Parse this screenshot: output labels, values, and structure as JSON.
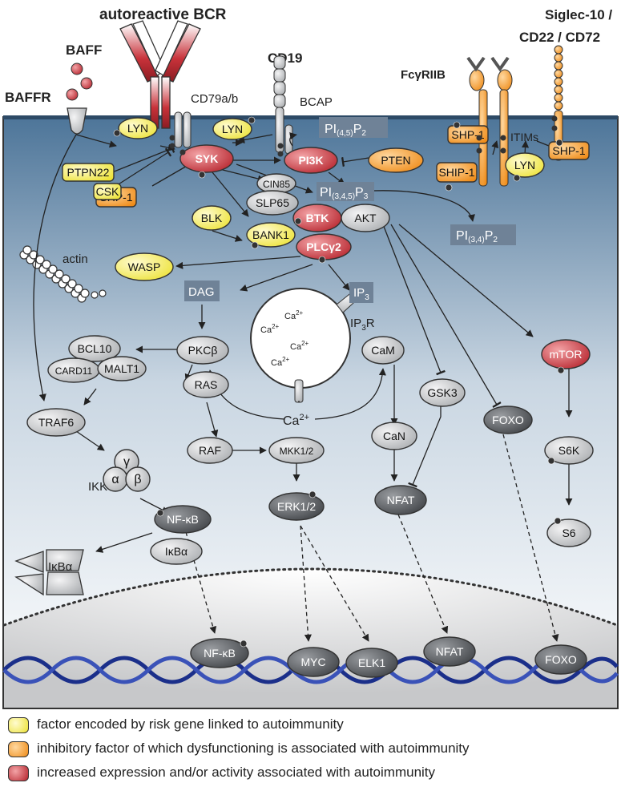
{
  "colors": {
    "yellow": "#f7ef45",
    "orange": "#f5a02a",
    "red": "#c8323a",
    "grey": "#c9cbce",
    "dark": "#5b5e63",
    "box": "#6f8297",
    "membrane": "#3f5f7e"
  },
  "labels": {
    "bcr": "autoreactive BCR",
    "baff": "BAFF",
    "baffr": "BAFFR",
    "cd79": "CD79a/b",
    "cd19": "CD19",
    "bcap": "BCAP",
    "fcgr": "FcγRIIB",
    "siglec1": "Siglec-10 /",
    "siglec2": "CD22 / CD72",
    "itims": "ITIMs",
    "actin": "actin",
    "ikk": "IKK",
    "ip3r": "IP",
    "ip3r_sub": "3",
    "ip3r_tail": "R",
    "ca": "Ca",
    "ca_sup": "2+"
  },
  "nodes": {
    "lyn1": "LYN",
    "lyn2": "LYN",
    "lyn3": "LYN",
    "syk": "SYK",
    "pi3k": "PI3K",
    "pten": "PTEN",
    "shp1_a": "SHP-1",
    "shp1_b": "SHP-1",
    "shp1_c": "SHP-1",
    "ship1": "SHIP-1",
    "ptpn22": "PTPN22",
    "csk": "CSK",
    "cin85": "CIN85",
    "slp65": "SLP65",
    "btk": "BTK",
    "akt": "AKT",
    "blk": "BLK",
    "bank1": "BANK1",
    "plcg2": "PLCγ2",
    "wasp": "WASP",
    "bcl10": "BCL10",
    "card11": "CARD11",
    "malt1": "MALT1",
    "pkcb": "PKCβ",
    "traf6": "TRAF6",
    "ras": "RAS",
    "raf": "RAF",
    "mkk": "MKK1/2",
    "erk": "ERK1/2",
    "ikk_g": "γ",
    "ikk_a": "α",
    "ikk_b": "β",
    "nfkb": "NF-κB",
    "ikba": "IκBα",
    "ikba_deg": "IκBα",
    "cam": "CaM",
    "can": "CaN",
    "nfat": "NFAT",
    "gsk3": "GSK3",
    "foxo": "FOXO",
    "mtor": "mTOR",
    "s6k": "S6K",
    "s6": "S6",
    "nuc_nfkb": "NF-κB",
    "nuc_myc": "MYC",
    "nuc_elk1": "ELK1",
    "nuc_nfat": "NFAT",
    "nuc_foxo": "FOXO"
  },
  "lipids": {
    "pi45": {
      "main": "PI",
      "sub": "(4,5)",
      "tail": "P",
      "tail_sub": "2"
    },
    "pi345": {
      "main": "PI",
      "sub": "(3,4,5)",
      "tail": "P",
      "tail_sub": "3"
    },
    "pi34": {
      "main": "PI",
      "sub": "(3,4)",
      "tail": "P",
      "tail_sub": "2"
    },
    "dag": {
      "main": "DAG"
    },
    "ip3": {
      "main": "IP",
      "sub": "3"
    }
  },
  "legend": [
    {
      "text": "factor encoded by risk gene linked to autoimmunity",
      "color": "#f7ef45"
    },
    {
      "text": "inhibitory factor of which dysfunctioning is associated with autoimmunity",
      "color": "#f5a02a"
    },
    {
      "text": "increased expression and/or activity associated with autoimmunity",
      "color": "#c8323a"
    }
  ]
}
